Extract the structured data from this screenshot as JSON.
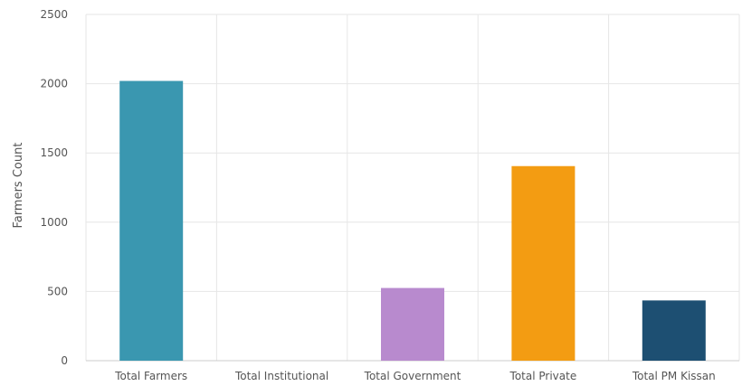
{
  "chart_data": {
    "type": "bar",
    "title": "",
    "xlabel": "",
    "ylabel": "Farmers Count",
    "categories": [
      "Total Farmers",
      "Total Institutional",
      "Total Government",
      "Total Private",
      "Total PM Kissan"
    ],
    "values": [
      2020,
      0,
      525,
      1405,
      435
    ],
    "colors": [
      "#3A97B0",
      "#5B9BD5",
      "#B88ACE",
      "#F39C12",
      "#1D4F72"
    ],
    "ylim": [
      0,
      2500
    ],
    "yticks": [
      0,
      500,
      1000,
      1500,
      2000,
      2500
    ],
    "grid": true,
    "legend": "none"
  }
}
